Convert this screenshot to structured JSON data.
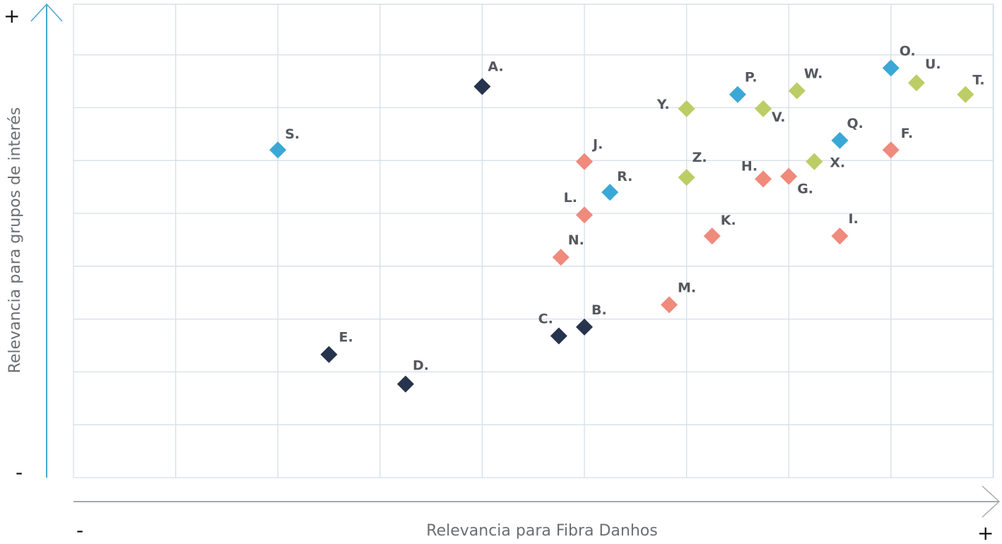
{
  "chart_data": {
    "type": "scatter",
    "title": "",
    "xlabel": "Relevancia para Fibra Danhos",
    "ylabel": "Relevancia para grupos de interés",
    "x_min_label": "-",
    "x_max_label": "+",
    "y_min_label": "-",
    "y_max_label": "+",
    "xlim": [
      0,
      9
    ],
    "ylim": [
      0,
      9
    ],
    "grid": true,
    "colors": {
      "navy": "#26344d",
      "blue": "#3aa8d6",
      "salmon": "#ef8a7c",
      "green": "#bccd65",
      "grid": "#d5dfe8",
      "axis_y": "#4aa6cf",
      "axis_x": "#a7aaad"
    },
    "points": [
      {
        "label": "A.",
        "x": 4.0,
        "y": 7.4,
        "color": "navy"
      },
      {
        "label": "B.",
        "x": 5.0,
        "y": 2.85,
        "color": "navy"
      },
      {
        "label": "C.",
        "x": 4.75,
        "y": 2.68,
        "color": "navy"
      },
      {
        "label": "D.",
        "x": 3.25,
        "y": 1.77,
        "color": "navy"
      },
      {
        "label": "E.",
        "x": 2.5,
        "y": 2.33,
        "color": "navy"
      },
      {
        "label": "F.",
        "x": 8.0,
        "y": 6.2,
        "color": "salmon"
      },
      {
        "label": "G.",
        "x": 7.0,
        "y": 5.7,
        "color": "salmon"
      },
      {
        "label": "H.",
        "x": 6.75,
        "y": 5.65,
        "color": "salmon"
      },
      {
        "label": "I.",
        "x": 7.5,
        "y": 4.57,
        "color": "salmon"
      },
      {
        "label": "J.",
        "x": 5.0,
        "y": 5.98,
        "color": "salmon"
      },
      {
        "label": "K.",
        "x": 6.25,
        "y": 4.57,
        "color": "salmon"
      },
      {
        "label": "L.",
        "x": 5.0,
        "y": 4.97,
        "color": "salmon"
      },
      {
        "label": "M.",
        "x": 5.83,
        "y": 3.27,
        "color": "salmon"
      },
      {
        "label": "N.",
        "x": 4.77,
        "y": 4.17,
        "color": "salmon"
      },
      {
        "label": "O.",
        "x": 8.0,
        "y": 7.75,
        "color": "blue"
      },
      {
        "label": "P.",
        "x": 6.5,
        "y": 7.25,
        "color": "blue"
      },
      {
        "label": "Q.",
        "x": 7.5,
        "y": 6.38,
        "color": "blue"
      },
      {
        "label": "R.",
        "x": 5.25,
        "y": 5.4,
        "color": "blue"
      },
      {
        "label": "S.",
        "x": 2.0,
        "y": 6.2,
        "color": "blue"
      },
      {
        "label": "T.",
        "x": 8.73,
        "y": 7.25,
        "color": "green"
      },
      {
        "label": "U.",
        "x": 8.25,
        "y": 7.47,
        "color": "green"
      },
      {
        "label": "V.",
        "x": 6.75,
        "y": 6.98,
        "color": "green"
      },
      {
        "label": "W.",
        "x": 7.08,
        "y": 7.32,
        "color": "green"
      },
      {
        "label": "X.",
        "x": 7.25,
        "y": 5.98,
        "color": "green"
      },
      {
        "label": "Y.",
        "x": 6.0,
        "y": 6.98,
        "color": "green"
      },
      {
        "label": "Z.",
        "x": 6.0,
        "y": 5.68,
        "color": "green"
      }
    ]
  }
}
